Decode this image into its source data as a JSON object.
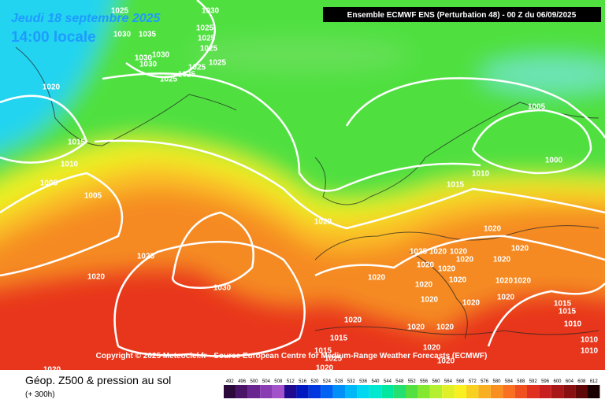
{
  "header": {
    "title": "Jeudi 18 septembre 2025",
    "time": "14:00 locale",
    "model": "Ensemble ECMWF ENS  (Perturbation 48)  - 00 Z du 06/09/2025"
  },
  "copyright": "Copyright © 2025 Meteociel.fr - Source European Centre for Medium-Range Weather Forecasts (ECMWF)",
  "footer": {
    "title": "Géop. Z500 & pression au sol",
    "lead": "(+ 300h)"
  },
  "colorbar": {
    "ticks": [
      492,
      496,
      500,
      504,
      508,
      512,
      516,
      520,
      524,
      528,
      532,
      536,
      540,
      544,
      548,
      552,
      556,
      560,
      564,
      568,
      572,
      576,
      580,
      584,
      588,
      592,
      596,
      600,
      604,
      608,
      612
    ],
    "colors": [
      "#2c0a3c",
      "#4a1468",
      "#6a2690",
      "#8a3cb2",
      "#a452cc",
      "#200a90",
      "#0018c0",
      "#0038e0",
      "#0062f2",
      "#0090f8",
      "#00b8f8",
      "#00d8f0",
      "#00e8d0",
      "#00e8a0",
      "#24e070",
      "#54e040",
      "#84e830",
      "#b4f030",
      "#e0f028",
      "#f8f020",
      "#f8d020",
      "#f8b020",
      "#f89020",
      "#f87020",
      "#f05020",
      "#e03020",
      "#c82020",
      "#a81818",
      "#881010",
      "#600808",
      "#1a0000"
    ]
  },
  "isobar_labels": [
    "1025",
    "1030",
    "1030",
    "1035",
    "1025",
    "1025",
    "1025",
    "1030",
    "1030",
    "1030",
    "1025",
    "1025",
    "1025",
    "1025",
    "1020",
    "1015",
    "1010",
    "1005",
    "1005",
    "1005",
    "1000",
    "1010",
    "1015",
    "1020",
    "1020",
    "1025",
    "1020",
    "1030",
    "1020",
    "1020",
    "1025",
    "1020",
    "1020",
    "1020",
    "1020",
    "1020",
    "1020",
    "1020",
    "1020",
    "1020",
    "1020",
    "1020",
    "1020",
    "1020",
    "1020",
    "1020",
    "1020",
    "1015",
    "1015",
    "1010",
    "1015",
    "1020",
    "1015",
    "1025",
    "1020",
    "1020",
    "1020",
    "1010",
    "1010"
  ]
}
